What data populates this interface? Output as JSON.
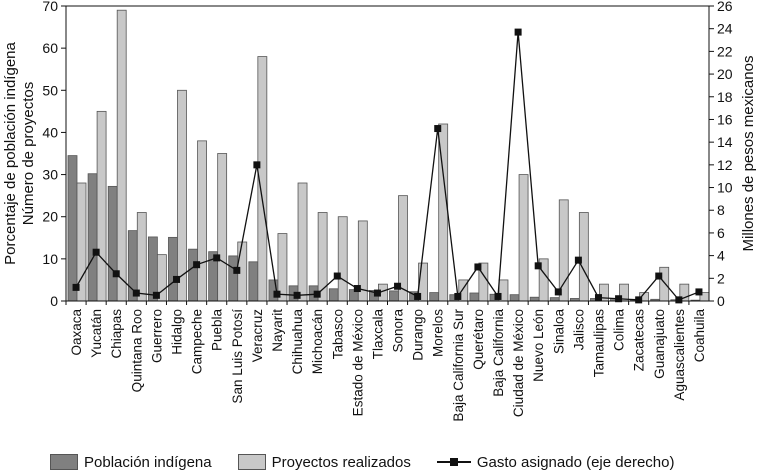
{
  "chart_data": {
    "type": "bar",
    "categories": [
      "Oaxaca",
      "Yucatán",
      "Chiapas",
      "Quintana Roo",
      "Guerrero",
      "Hidalgo",
      "Campeche",
      "Puebla",
      "San Luis Potosí",
      "Veracruz",
      "Nayarit",
      "Chihuahua",
      "Michoacán",
      "Tabasco",
      "Estado de México",
      "Tlaxcala",
      "Sonora",
      "Durango",
      "Morelos",
      "Baja California Sur",
      "Querétaro",
      "Baja California",
      "Ciudad de México",
      "Nuevo León",
      "Sinaloa",
      "Jalisco",
      "Tamaulipas",
      "Colima",
      "Zacatecas",
      "Guanajuato",
      "Aguascalientes",
      "Coahuila"
    ],
    "series": [
      {
        "name": "Población indígena",
        "axis": "left",
        "color": "#808080",
        "values": [
          34.5,
          30.2,
          27.2,
          16.7,
          15.2,
          15.1,
          12.3,
          11.7,
          10.7,
          9.3,
          5.0,
          3.6,
          3.6,
          2.9,
          2.7,
          2.5,
          2.4,
          2.2,
          2.0,
          1.5,
          1.9,
          1.6,
          1.5,
          0.9,
          0.8,
          0.6,
          0.6,
          0.6,
          0.4,
          0.4,
          0.3,
          0.2
        ]
      },
      {
        "name": "Proyectos realizados",
        "axis": "left",
        "color": "#c8c8c8",
        "values": [
          28,
          45,
          69,
          21,
          11,
          50,
          38,
          35,
          14,
          58,
          16,
          28,
          21,
          20,
          19,
          4,
          25,
          9,
          42,
          5,
          9,
          5,
          30,
          10,
          24,
          21,
          4,
          4,
          2,
          8,
          4,
          2
        ]
      },
      {
        "name": "Gasto asignado (eje derecho)",
        "axis": "right",
        "type": "line",
        "color": "#111111",
        "values": [
          1.2,
          4.3,
          2.4,
          0.7,
          0.5,
          1.9,
          3.2,
          3.8,
          2.7,
          12.0,
          0.6,
          0.5,
          0.6,
          2.2,
          1.1,
          0.7,
          1.3,
          0.4,
          15.2,
          0.4,
          3.0,
          0.4,
          23.7,
          3.1,
          0.8,
          3.6,
          0.3,
          0.2,
          0.1,
          2.2,
          0.1,
          0.8
        ]
      }
    ],
    "ylabel": "Porcentaje de población indígena\nNúmero de proyectos",
    "y2label": "Millones de pesos mexicanos",
    "ylim": [
      0,
      70
    ],
    "yticks": [
      0,
      10,
      20,
      30,
      40,
      50,
      60,
      70
    ],
    "y2lim": [
      0,
      26
    ],
    "y2ticks": [
      0,
      2,
      4,
      6,
      8,
      10,
      12,
      14,
      16,
      18,
      20,
      22,
      24,
      26
    ],
    "legend_position": "bottom"
  }
}
